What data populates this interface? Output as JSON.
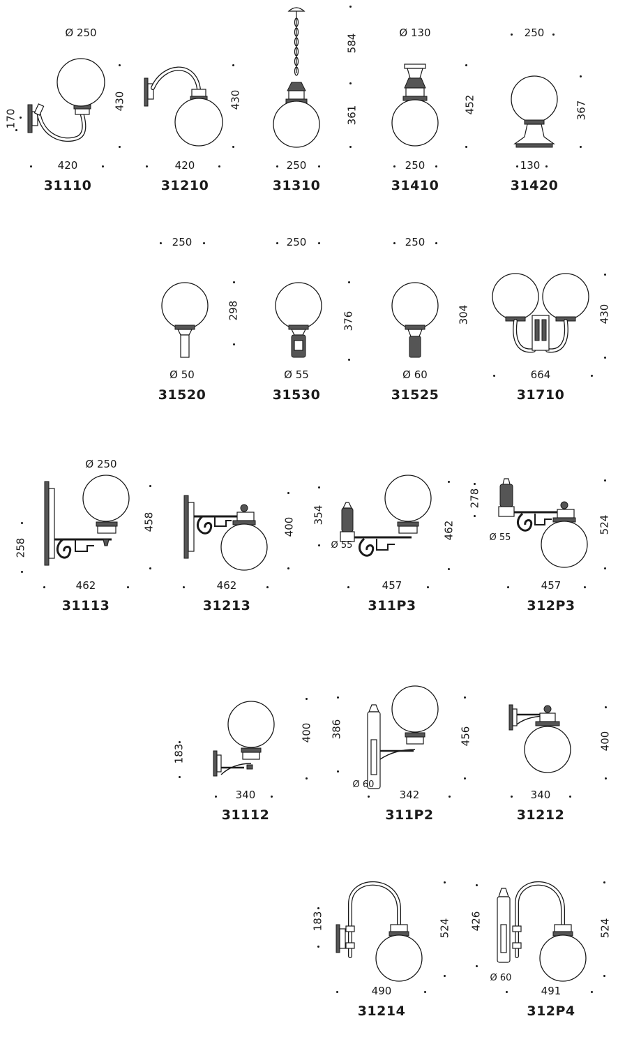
{
  "products": [
    {
      "id": "p31110",
      "code": "31110",
      "dims": {
        "top": "Ø 250",
        "bottom": "420",
        "right": "430",
        "left": "170"
      }
    },
    {
      "id": "p31210",
      "code": "31210",
      "dims": {
        "bottom": "420",
        "right": "430"
      }
    },
    {
      "id": "p31310",
      "code": "31310",
      "dims": {
        "bottom": "250",
        "right_top": "584",
        "right": "361"
      }
    },
    {
      "id": "p31410",
      "code": "31410",
      "dims": {
        "top": "Ø 130",
        "bottom": "250",
        "right": "452"
      }
    },
    {
      "id": "p31420",
      "code": "31420",
      "dims": {
        "top": "250",
        "bottom": "130",
        "right": "367"
      }
    },
    {
      "id": "p31520",
      "code": "31520",
      "dims": {
        "top": "250",
        "bottom": "Ø 50",
        "right": "298"
      }
    },
    {
      "id": "p31530",
      "code": "31530",
      "dims": {
        "top": "250",
        "bottom": "Ø 55",
        "right": "376"
      }
    },
    {
      "id": "p31525",
      "code": "31525",
      "dims": {
        "top": "250",
        "bottom": "Ø 60",
        "left": "304"
      }
    },
    {
      "id": "p31710",
      "code": "31710",
      "dims": {
        "bottom": "664",
        "right": "430"
      }
    },
    {
      "id": "p31113",
      "code": "31113",
      "dims": {
        "top": "Ø 250",
        "bottom": "462",
        "right": "458",
        "left": "258"
      }
    },
    {
      "id": "p31213",
      "code": "31213",
      "dims": {
        "bottom": "462",
        "right": "400"
      }
    },
    {
      "id": "p311P3",
      "code": "311P3",
      "dims": {
        "bottom": "457",
        "right": "462",
        "left": "354",
        "inner": "Ø 55"
      }
    },
    {
      "id": "p312P3",
      "code": "312P3",
      "dims": {
        "bottom": "457",
        "right": "524",
        "left": "278",
        "inner": "Ø 55"
      }
    },
    {
      "id": "p31112",
      "code": "31112",
      "dims": {
        "bottom": "340",
        "right": "400",
        "left": "183"
      }
    },
    {
      "id": "p311P2",
      "code": "311P2",
      "dims": {
        "bottom": "342",
        "right": "456",
        "left": "386",
        "inner": "Ø 60"
      }
    },
    {
      "id": "p31212",
      "code": "31212",
      "dims": {
        "bottom": "340",
        "right": "400"
      }
    },
    {
      "id": "p31214",
      "code": "31214",
      "dims": {
        "bottom": "490",
        "right": "524",
        "left": "183"
      }
    },
    {
      "id": "p312P4",
      "code": "312P4",
      "dims": {
        "bottom": "491",
        "right": "524",
        "left": "426",
        "inner": "Ø 60"
      }
    }
  ]
}
